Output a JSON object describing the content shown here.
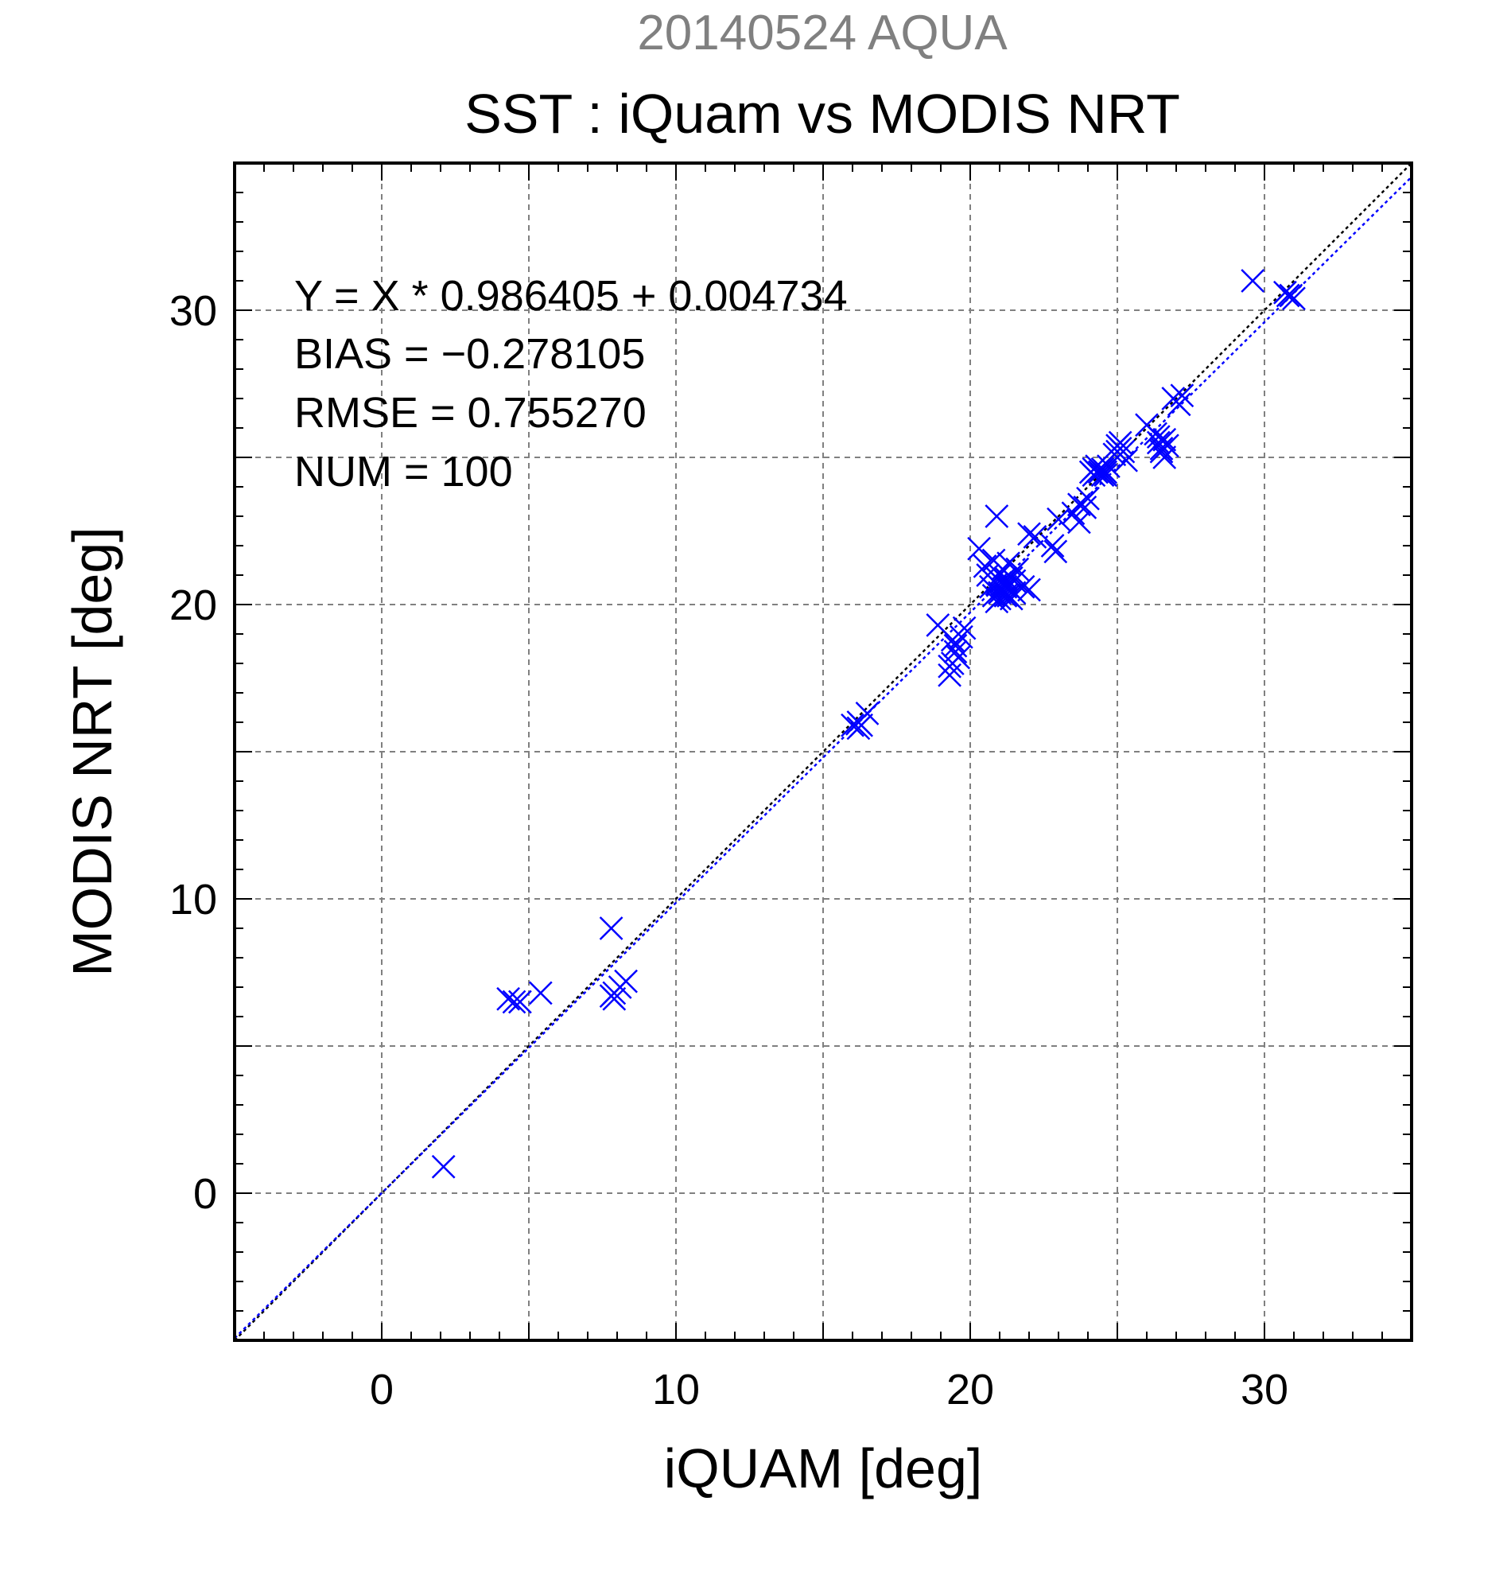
{
  "header": {
    "subtitle": "20140524 AQUA",
    "title": "SST : iQuam vs MODIS NRT"
  },
  "colors": {
    "subtitle": "#808080",
    "text": "#000000",
    "points": "#0000ff",
    "fit_line": "#0000ff",
    "identity_line": "#000000",
    "grid": "#808080"
  },
  "stats": {
    "line1": "Y = X * 0.986405 + 0.004734",
    "line2": "BIAS = −0.278105",
    "line3": "RMSE = 0.755270",
    "line4": "NUM = 100"
  },
  "chart_data": {
    "type": "scatter",
    "xlabel": "iQUAM [deg]",
    "ylabel": "MODIS NRT [deg]",
    "xlim": [
      -5,
      35
    ],
    "ylim": [
      -5,
      35
    ],
    "xticks": [
      0,
      10,
      20,
      30
    ],
    "yticks": [
      0,
      10,
      20,
      30
    ],
    "tick_labels_x": [
      "0",
      "10",
      "20",
      "30"
    ],
    "tick_labels_y": [
      "0",
      "10",
      "20",
      "30"
    ],
    "grid": true,
    "marker": "x",
    "fit": {
      "slope": 0.986405,
      "intercept": 0.004734,
      "style": "dotted"
    },
    "identity_line": {
      "slope": 1,
      "intercept": 0,
      "style": "dotted"
    },
    "points": [
      [
        2.1,
        0.9
      ],
      [
        4.3,
        6.6
      ],
      [
        4.5,
        6.5
      ],
      [
        4.7,
        6.5
      ],
      [
        5.4,
        6.8
      ],
      [
        7.8,
        9.0
      ],
      [
        7.8,
        6.7
      ],
      [
        7.9,
        6.6
      ],
      [
        8.1,
        7.0
      ],
      [
        8.3,
        7.2
      ],
      [
        16.0,
        15.9
      ],
      [
        16.2,
        15.8
      ],
      [
        16.3,
        15.9
      ],
      [
        16.5,
        16.3
      ],
      [
        18.9,
        19.3
      ],
      [
        19.3,
        17.6
      ],
      [
        19.3,
        17.9
      ],
      [
        19.4,
        18.8
      ],
      [
        19.5,
        18.4
      ],
      [
        19.6,
        18.2
      ],
      [
        19.7,
        18.9
      ],
      [
        19.8,
        19.2
      ],
      [
        20.3,
        21.9
      ],
      [
        20.5,
        21.3
      ],
      [
        20.6,
        21.0
      ],
      [
        20.7,
        20.6
      ],
      [
        20.8,
        20.3
      ],
      [
        20.8,
        21.5
      ],
      [
        20.9,
        23.0
      ],
      [
        20.9,
        20.7
      ],
      [
        21.0,
        20.2
      ],
      [
        21.0,
        21.0
      ],
      [
        21.1,
        20.5
      ],
      [
        21.1,
        21.2
      ],
      [
        21.2,
        20.3
      ],
      [
        21.2,
        20.8
      ],
      [
        21.3,
        21.4
      ],
      [
        21.3,
        20.6
      ],
      [
        21.4,
        20.2
      ],
      [
        21.4,
        20.9
      ],
      [
        21.5,
        20.4
      ],
      [
        21.6,
        21.2
      ],
      [
        21.8,
        20.6
      ],
      [
        22.0,
        20.5
      ],
      [
        22.0,
        22.4
      ],
      [
        22.2,
        22.3
      ],
      [
        22.8,
        22.0
      ],
      [
        22.9,
        21.8
      ],
      [
        23.0,
        22.9
      ],
      [
        23.5,
        23.1
      ],
      [
        23.7,
        22.8
      ],
      [
        23.7,
        23.4
      ],
      [
        23.9,
        23.3
      ],
      [
        24.0,
        23.6
      ],
      [
        24.1,
        24.5
      ],
      [
        24.2,
        24.4
      ],
      [
        24.3,
        24.7
      ],
      [
        24.4,
        24.5
      ],
      [
        24.5,
        24.6
      ],
      [
        24.6,
        24.4
      ],
      [
        24.7,
        24.7
      ],
      [
        24.9,
        25.1
      ],
      [
        25.0,
        25.4
      ],
      [
        25.1,
        25.5
      ],
      [
        25.2,
        25.2
      ],
      [
        25.3,
        24.9
      ],
      [
        26.0,
        26.1
      ],
      [
        26.3,
        25.8
      ],
      [
        26.4,
        25.5
      ],
      [
        26.5,
        25.2
      ],
      [
        26.6,
        25.0
      ],
      [
        26.6,
        25.6
      ],
      [
        26.7,
        25.4
      ],
      [
        26.9,
        27.0
      ],
      [
        27.1,
        26.8
      ],
      [
        27.2,
        27.1
      ],
      [
        29.6,
        31.0
      ],
      [
        30.7,
        30.6
      ],
      [
        30.9,
        30.5
      ],
      [
        31.0,
        30.4
      ],
      [
        21.1,
        20.7
      ],
      [
        21.2,
        20.9
      ],
      [
        21.0,
        20.4
      ],
      [
        21.3,
        20.3
      ],
      [
        24.2,
        24.6
      ],
      [
        24.5,
        24.4
      ],
      [
        25.1,
        25.3
      ],
      [
        26.5,
        25.3
      ],
      [
        19.5,
        18.6
      ],
      [
        16.2,
        16.0
      ],
      [
        7.9,
        6.8
      ],
      [
        20.9,
        20.1
      ],
      [
        21.5,
        20.8
      ],
      [
        24.3,
        24.5
      ],
      [
        25.0,
        25.2
      ],
      [
        26.4,
        25.7
      ],
      [
        30.8,
        30.5
      ],
      [
        19.4,
        18.0
      ],
      [
        21.2,
        20.6
      ],
      [
        24.6,
        24.5
      ]
    ]
  }
}
